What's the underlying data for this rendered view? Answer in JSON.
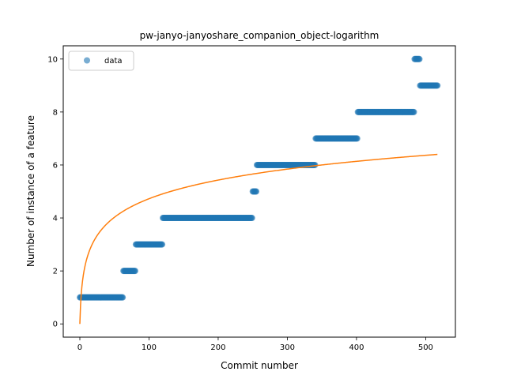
{
  "chart_data": {
    "type": "scatter",
    "title": "pw-janyo-janyoshare_companion_object-logarithm",
    "xlabel": "Commit number",
    "ylabel": "Number of instance of a feature",
    "xlim": [
      -24,
      543
    ],
    "ylim": [
      -0.5,
      10.5
    ],
    "xticks": [
      0,
      100,
      200,
      300,
      400,
      500
    ],
    "yticks": [
      0,
      2,
      4,
      6,
      8,
      10
    ],
    "grid": false,
    "legend": {
      "position": "top-left",
      "entries": [
        "data"
      ]
    },
    "colors": {
      "data": "#1f77b4",
      "fit": "#ff7f0e"
    },
    "series": [
      {
        "name": "data",
        "kind": "scatter",
        "segments": [
          {
            "y": 1,
            "x_start": 0,
            "x_end": 62
          },
          {
            "y": 2,
            "x_start": 63,
            "x_end": 80
          },
          {
            "y": 3,
            "x_start": 81,
            "x_end": 119
          },
          {
            "y": 4,
            "x_start": 120,
            "x_end": 249
          },
          {
            "y": 5,
            "x_start": 250,
            "x_end": 255
          },
          {
            "y": 6,
            "x_start": 256,
            "x_end": 340
          },
          {
            "y": 7,
            "x_start": 341,
            "x_end": 401
          },
          {
            "y": 8,
            "x_start": 402,
            "x_end": 483
          },
          {
            "y": 10,
            "x_start": 484,
            "x_end": 491
          },
          {
            "y": 9,
            "x_start": 492,
            "x_end": 517
          }
        ]
      },
      {
        "kind": "line",
        "fit": "logarithmic",
        "coef_a": 1.024,
        "x_range": [
          0,
          517
        ]
      }
    ]
  }
}
